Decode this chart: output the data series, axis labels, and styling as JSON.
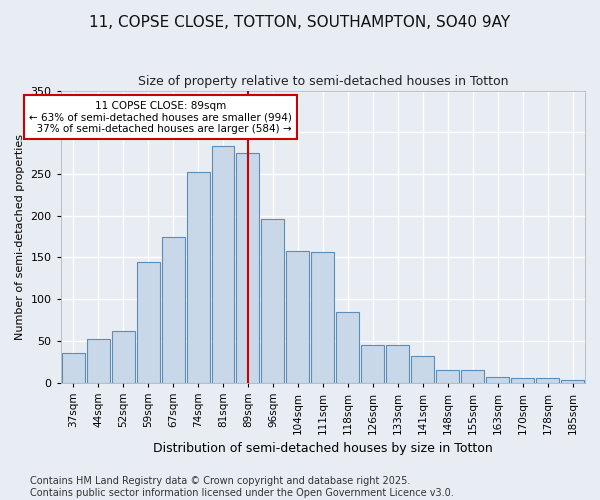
{
  "title": "11, COPSE CLOSE, TOTTON, SOUTHAMPTON, SO40 9AY",
  "subtitle": "Size of property relative to semi-detached houses in Totton",
  "xlabel": "Distribution of semi-detached houses by size in Totton",
  "ylabel": "Number of semi-detached properties",
  "categories": [
    "37sqm",
    "44sqm",
    "52sqm",
    "59sqm",
    "67sqm",
    "74sqm",
    "81sqm",
    "89sqm",
    "96sqm",
    "104sqm",
    "111sqm",
    "118sqm",
    "126sqm",
    "133sqm",
    "141sqm",
    "148sqm",
    "155sqm",
    "163sqm",
    "170sqm",
    "178sqm",
    "185sqm"
  ],
  "bar_values": [
    35,
    52,
    62,
    145,
    175,
    252,
    283,
    275,
    196,
    158,
    157,
    84,
    45,
    45,
    32,
    15,
    15,
    7,
    6,
    5,
    3
  ],
  "bar_color": "#c8d8e8",
  "bar_edge_color": "#5b8db8",
  "vline_x_index": 7,
  "vline_color": "#cc0000",
  "annotation_text": "11 COPSE CLOSE: 89sqm\n← 63% of semi-detached houses are smaller (994)\n  37% of semi-detached houses are larger (584) →",
  "annotation_box_color": "#ffffff",
  "annotation_box_edge": "#cc0000",
  "ylim": [
    0,
    350
  ],
  "yticks": [
    0,
    50,
    100,
    150,
    200,
    250,
    300,
    350
  ],
  "background_color": "#e8edf3",
  "grid_color": "#ffffff",
  "footer_text": "Contains HM Land Registry data © Crown copyright and database right 2025.\nContains public sector information licensed under the Open Government Licence v3.0.",
  "title_fontsize": 11,
  "subtitle_fontsize": 9,
  "footer_fontsize": 7,
  "ylabel_fontsize": 8,
  "xlabel_fontsize": 9
}
